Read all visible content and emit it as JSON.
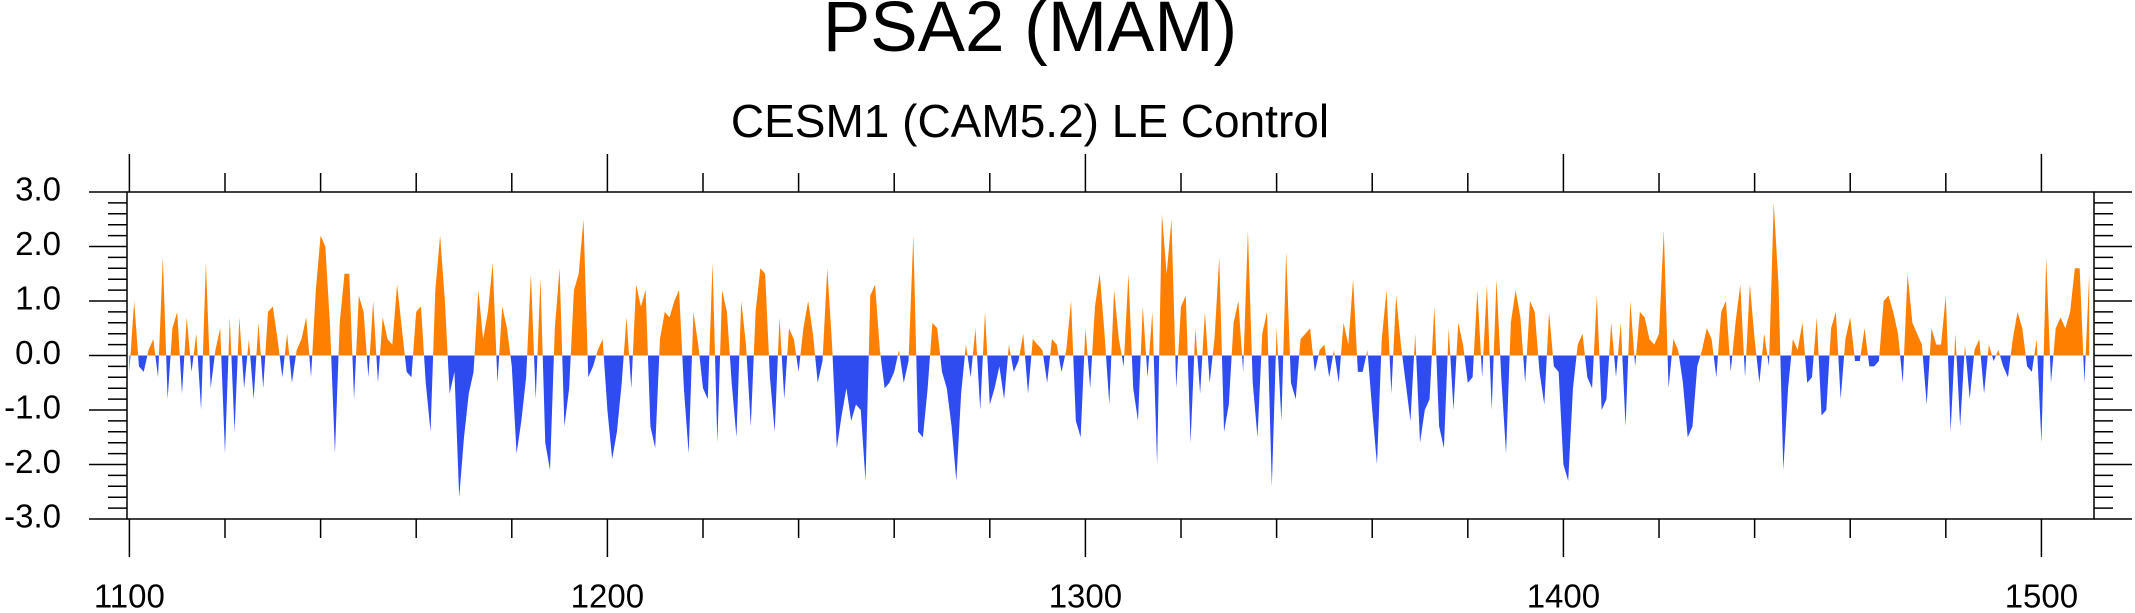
{
  "chart_data": {
    "type": "area",
    "title": "PSA2 (MAM)",
    "subtitle": "CESM1 (CAM5.2) LE Control",
    "color_above": "#ff8000",
    "color_below": "#2e4cf0",
    "xlim": [
      1099.5,
      1511
    ],
    "xticks": [
      1100,
      1200,
      1300,
      1400,
      1500
    ],
    "xticks_minor": [
      1120,
      1140,
      1160,
      1180,
      1220,
      1240,
      1260,
      1280,
      1320,
      1340,
      1360,
      1380,
      1420,
      1440,
      1460,
      1480
    ],
    "ylim": [
      -3,
      3
    ],
    "yticks": [
      {
        "value": -3,
        "label": "-3.0"
      },
      {
        "value": -2,
        "label": "-2.0"
      },
      {
        "value": -1,
        "label": "-1.0"
      },
      {
        "value": 0,
        "label": "0.0"
      },
      {
        "value": 1,
        "label": "1.0"
      },
      {
        "value": 2,
        "label": "2.0"
      },
      {
        "value": 3,
        "label": "3.0"
      }
    ],
    "yticks_minor": [
      -2.8,
      -2.6,
      -2.4,
      -2.2,
      -1.8,
      -1.6,
      -1.4,
      -1.2,
      -0.8,
      -0.6,
      -0.4,
      -0.2,
      0.2,
      0.4,
      0.6,
      0.8,
      1.2,
      1.4,
      1.6,
      1.8,
      2.2,
      2.4,
      2.6,
      2.8
    ],
    "x": [
      1100,
      1101,
      1102,
      1103,
      1104,
      1105,
      1106,
      1107,
      1108,
      1109,
      1110,
      1111,
      1112,
      1113,
      1114,
      1115,
      1116,
      1117,
      1118,
      1119,
      1120,
      1121,
      1122,
      1123,
      1124,
      1125,
      1126,
      1127,
      1128,
      1129,
      1130,
      1131,
      1132,
      1133,
      1134,
      1135,
      1136,
      1137,
      1138,
      1139,
      1140,
      1141,
      1142,
      1143,
      1144,
      1145,
      1146,
      1147,
      1148,
      1149,
      1150,
      1151,
      1152,
      1153,
      1154,
      1155,
      1156,
      1157,
      1158,
      1159,
      1160,
      1161,
      1162,
      1163,
      1164,
      1165,
      1166,
      1167,
      1168,
      1169,
      1170,
      1171,
      1172,
      1173,
      1174,
      1175,
      1176,
      1177,
      1178,
      1179,
      1180,
      1181,
      1182,
      1183,
      1184,
      1185,
      1186,
      1187,
      1188,
      1189,
      1190,
      1191,
      1192,
      1193,
      1194,
      1195,
      1196,
      1197,
      1198,
      1199,
      1200,
      1201,
      1202,
      1203,
      1204,
      1205,
      1206,
      1207,
      1208,
      1209,
      1210,
      1211,
      1212,
      1213,
      1214,
      1215,
      1216,
      1217,
      1218,
      1219,
      1220,
      1221,
      1222,
      1223,
      1224,
      1225,
      1226,
      1227,
      1228,
      1229,
      1230,
      1231,
      1232,
      1233,
      1234,
      1235,
      1236,
      1237,
      1238,
      1239,
      1240,
      1241,
      1242,
      1243,
      1244,
      1245,
      1246,
      1247,
      1248,
      1249,
      1250,
      1251,
      1252,
      1253,
      1254,
      1255,
      1256,
      1257,
      1258,
      1259,
      1260,
      1261,
      1262,
      1263,
      1264,
      1265,
      1266,
      1267,
      1268,
      1269,
      1270,
      1271,
      1272,
      1273,
      1274,
      1275,
      1276,
      1277,
      1278,
      1279,
      1280,
      1281,
      1282,
      1283,
      1284,
      1285,
      1286,
      1287,
      1288,
      1289,
      1290,
      1291,
      1292,
      1293,
      1294,
      1295,
      1296,
      1297,
      1298,
      1299,
      1300,
      1301,
      1302,
      1303,
      1304,
      1305,
      1306,
      1307,
      1308,
      1309,
      1310,
      1311,
      1312,
      1313,
      1314,
      1315,
      1316,
      1317,
      1318,
      1319,
      1320,
      1321,
      1322,
      1323,
      1324,
      1325,
      1326,
      1327,
      1328,
      1329,
      1330,
      1331,
      1332,
      1333,
      1334,
      1335,
      1336,
      1337,
      1338,
      1339,
      1340,
      1341,
      1342,
      1343,
      1344,
      1345,
      1346,
      1347,
      1348,
      1349,
      1350,
      1351,
      1352,
      1353,
      1354,
      1355,
      1356,
      1357,
      1358,
      1359,
      1360,
      1361,
      1362,
      1363,
      1364,
      1365,
      1366,
      1367,
      1368,
      1369,
      1370,
      1371,
      1372,
      1373,
      1374,
      1375,
      1376,
      1377,
      1378,
      1379,
      1380,
      1381,
      1382,
      1383,
      1384,
      1385,
      1386,
      1387,
      1388,
      1389,
      1390,
      1391,
      1392,
      1393,
      1394,
      1395,
      1396,
      1397,
      1398,
      1399,
      1400,
      1401,
      1402,
      1403,
      1404,
      1405,
      1406,
      1407,
      1408,
      1409,
      1410,
      1411,
      1412,
      1413,
      1414,
      1415,
      1416,
      1417,
      1418,
      1419,
      1420,
      1421,
      1422,
      1423,
      1424,
      1425,
      1426,
      1427,
      1428,
      1429,
      1430,
      1431,
      1432,
      1433,
      1434,
      1435,
      1436,
      1437,
      1438,
      1439,
      1440,
      1441,
      1442,
      1443,
      1444,
      1445,
      1446,
      1447,
      1448,
      1449,
      1450,
      1451,
      1452,
      1453,
      1454,
      1455,
      1456,
      1457,
      1458,
      1459,
      1460,
      1461,
      1462,
      1463,
      1464,
      1465,
      1466,
      1467,
      1468,
      1469,
      1470,
      1471,
      1472,
      1473,
      1474,
      1475,
      1476,
      1477,
      1478,
      1479,
      1480,
      1481,
      1482,
      1483,
      1484,
      1485,
      1486,
      1487,
      1488,
      1489,
      1490,
      1491,
      1492,
      1493,
      1494,
      1495,
      1496,
      1497,
      1498,
      1499,
      1500,
      1501,
      1502,
      1503,
      1504,
      1505,
      1506,
      1507,
      1508,
      1509,
      1510
    ],
    "values": [
      -0.3,
      1.0,
      -0.2,
      -0.3,
      0.1,
      0.3,
      -0.4,
      1.8,
      -0.8,
      0.5,
      0.8,
      -0.7,
      0.7,
      -0.3,
      0.4,
      -1.0,
      1.7,
      -0.6,
      0.1,
      0.5,
      -1.8,
      0.7,
      -1.4,
      0.7,
      -0.6,
      0.3,
      -0.8,
      0.6,
      -0.6,
      0.8,
      0.9,
      0.3,
      -0.4,
      0.4,
      -0.5,
      0.1,
      0.3,
      0.7,
      -0.4,
      1.2,
      2.2,
      2.0,
      0.5,
      -1.8,
      0.6,
      1.5,
      1.5,
      -0.8,
      1.1,
      0.8,
      -0.4,
      1.0,
      -0.5,
      0.7,
      0.3,
      0.2,
      1.3,
      0.5,
      -0.3,
      -0.4,
      0.8,
      0.9,
      -0.5,
      -1.4,
      1.2,
      2.2,
      1.0,
      -0.7,
      -0.3,
      -2.6,
      -1.5,
      -0.7,
      -0.3,
      1.2,
      0.3,
      0.8,
      1.7,
      -0.5,
      0.9,
      0.5,
      -0.2,
      -1.8,
      -1.2,
      -0.4,
      1.5,
      -0.8,
      1.4,
      -1.6,
      -2.1,
      0.5,
      1.6,
      -1.3,
      -0.6,
      1.2,
      1.5,
      2.5,
      -0.4,
      -0.2,
      0.1,
      0.3,
      -1.0,
      -1.9,
      -1.4,
      -0.5,
      0.7,
      -0.6,
      1.3,
      0.9,
      1.2,
      -1.3,
      -1.7,
      0.3,
      0.8,
      0.7,
      1.0,
      1.2,
      -0.6,
      -1.8,
      0.8,
      0.2,
      -0.6,
      -0.8,
      1.7,
      -1.6,
      1.2,
      0.8,
      -0.5,
      -1.5,
      1.0,
      0.2,
      -1.3,
      0.8,
      1.6,
      1.5,
      -0.4,
      -1.4,
      0.7,
      -0.8,
      0.5,
      0.3,
      -0.3,
      0.5,
      1.0,
      0.4,
      -0.5,
      -0.1,
      1.6,
      0.2,
      -1.7,
      -1.1,
      -0.6,
      -1.2,
      -0.9,
      -1.0,
      -2.3,
      1.1,
      1.3,
      0.1,
      -0.6,
      -0.5,
      -0.3,
      0.1,
      -0.5,
      -0.1,
      2.2,
      -1.4,
      -1.5,
      -0.6,
      0.6,
      0.5,
      -0.3,
      -0.6,
      -1.3,
      -2.3,
      -0.7,
      0.2,
      -0.4,
      0.5,
      -1.0,
      0.8,
      -0.9,
      -0.6,
      -0.2,
      -0.8,
      0.2,
      -0.3,
      -0.1,
      0.4,
      -0.7,
      0.3,
      0.2,
      0.1,
      -0.5,
      0.3,
      0.2,
      -0.3,
      0.1,
      1.0,
      -1.2,
      -1.5,
      0.5,
      -0.6,
      0.9,
      1.5,
      0.4,
      -0.9,
      1.2,
      0.3,
      -0.2,
      1.5,
      -0.6,
      -1.2,
      0.9,
      -0.4,
      0.8,
      -2.0,
      2.6,
      1.5,
      2.5,
      -0.6,
      0.9,
      1.1,
      -1.6,
      0.5,
      -0.7,
      0.8,
      -0.5,
      0.3,
      1.8,
      -1.4,
      -0.9,
      0.6,
      1.0,
      -0.3,
      2.3,
      -0.5,
      -1.5,
      0.4,
      0.8,
      -2.4,
      0.5,
      -1.2,
      1.9,
      -0.5,
      -0.8,
      0.3,
      0.4,
      0.5,
      -0.3,
      0.1,
      0.2,
      -0.4,
      0.1,
      -0.5,
      0.6,
      0.2,
      1.4,
      -0.3,
      -0.3,
      0.1,
      -1.0,
      -2.0,
      0.3,
      1.2,
      -0.7,
      1.1,
      0.2,
      -0.5,
      -1.2,
      0.4,
      -1.6,
      -1.0,
      -0.8,
      0.9,
      -1.3,
      -1.7,
      0.5,
      -1.0,
      0.6,
      0.2,
      -0.5,
      -0.4,
      1.2,
      -0.4,
      1.3,
      -1.0,
      1.4,
      -0.4,
      -1.8,
      0.6,
      1.2,
      0.7,
      -0.5,
      1.0,
      0.8,
      -0.3,
      -0.9,
      0.8,
      -0.2,
      -0.3,
      -2.0,
      -2.3,
      -0.6,
      0.2,
      0.4,
      -0.4,
      -0.6,
      1.1,
      -1.0,
      -0.8,
      0.6,
      -0.4,
      0.6,
      -1.3,
      1.0,
      -0.2,
      0.8,
      0.7,
      0.3,
      0.2,
      0.4,
      2.3,
      -0.6,
      0.3,
      0.1,
      -0.5,
      -1.5,
      -1.3,
      -0.2,
      0.1,
      0.5,
      0.3,
      -0.4,
      0.8,
      1.0,
      -0.3,
      0.6,
      1.3,
      -0.4,
      1.3,
      0.3,
      -0.5,
      0.4,
      -0.2,
      2.8,
      1.3,
      -2.1,
      -0.6,
      0.3,
      0.1,
      0.6,
      -0.5,
      -0.4,
      0.7,
      -1.1,
      -1.0,
      0.5,
      0.8,
      -0.8,
      0.3,
      0.7,
      -0.1,
      -0.1,
      0.5,
      -0.2,
      -0.2,
      -0.1,
      1.0,
      1.1,
      0.8,
      0.4,
      -0.5,
      1.5,
      0.6,
      0.4,
      0.2,
      -0.9,
      0.5,
      0.2,
      0.2,
      1.1,
      -1.4,
      0.4,
      -1.3,
      0.2,
      -0.8,
      0.1,
      0.3,
      -0.7,
      0.2,
      -0.1,
      0.1,
      -0.2,
      -0.4,
      0.3,
      0.8,
      0.5,
      -0.2,
      -0.3,
      0.3,
      -1.6,
      1.8,
      -0.5,
      0.5,
      0.7,
      0.5,
      0.8,
      1.6,
      1.6,
      -0.5,
      1.5
    ]
  }
}
